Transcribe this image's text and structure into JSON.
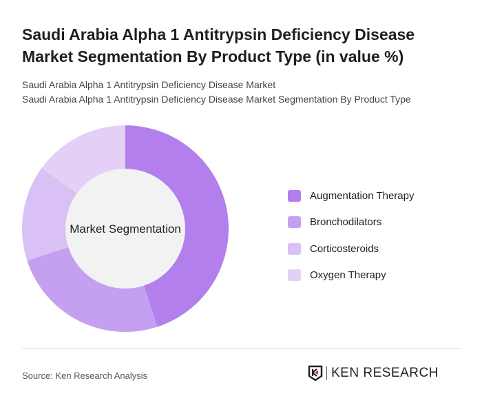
{
  "title": "Saudi Arabia Alpha 1 Antitrypsin Deficiency Disease Market Segmentation By Product Type (in value %)",
  "subtitle1": "Saudi Arabia Alpha 1 Antitrypsin Deficiency Disease Market",
  "subtitle2": "Saudi Arabia Alpha 1 Antitrypsin Deficiency Disease Market Segmentation By Product Type",
  "source": "Source: Ken Research Analysis",
  "logo_text": "KEN RESEARCH",
  "chart_data": {
    "type": "pie",
    "donut": true,
    "center_label": "Market Segmentation",
    "categories": [
      "Augmentation Therapy",
      "Bronchodilators",
      "Corticosteroids",
      "Oxygen Therapy"
    ],
    "values": [
      45,
      25,
      15,
      15
    ],
    "colors": [
      "#b27fec",
      "#c59ff0",
      "#d9c0f5",
      "#e4d0f7"
    ],
    "legend_position": "right"
  }
}
